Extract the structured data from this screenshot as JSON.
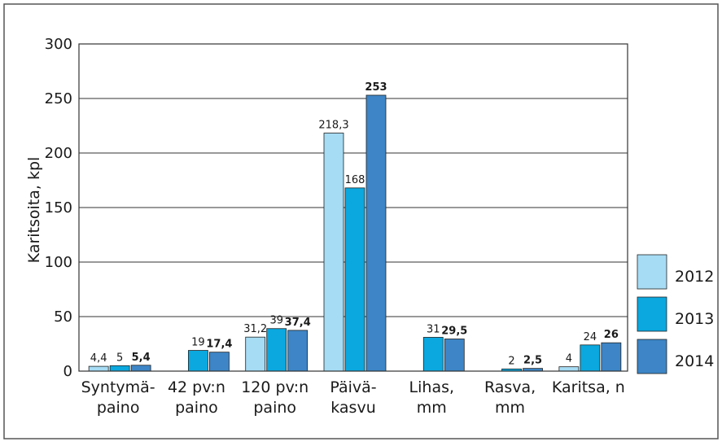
{
  "chart_data": {
    "type": "bar",
    "title": "",
    "xlabel": "",
    "ylabel": "Karitsoita, kpl",
    "ylim": [
      0,
      300
    ],
    "yticks": [
      0,
      50,
      100,
      150,
      200,
      250,
      300
    ],
    "grid": true,
    "legend_position": "right",
    "categories": [
      [
        "Syntymä-",
        "paino"
      ],
      [
        "42 pv:n",
        "paino"
      ],
      [
        "120 pv:n",
        "paino"
      ],
      [
        "Päivä-",
        "kasvu"
      ],
      [
        "Lihas,",
        "mm"
      ],
      [
        "Rasva,",
        "mm"
      ],
      [
        "Karitsa, n"
      ]
    ],
    "series": [
      {
        "name": "2012",
        "color": "#a6dcf4",
        "values": [
          4.4,
          null,
          31.2,
          218.3,
          null,
          null,
          4
        ],
        "labels": [
          "4,4",
          "",
          "31,2",
          "218,3",
          "",
          "",
          "4"
        ],
        "bold": false
      },
      {
        "name": "2013",
        "color": "#0aa8df",
        "values": [
          5,
          19,
          39,
          168,
          31,
          2,
          24
        ],
        "labels": [
          "5",
          "19",
          "39",
          "168",
          "31",
          "2",
          "24"
        ],
        "bold": false
      },
      {
        "name": "2014",
        "color": "#3d85c6",
        "values": [
          5.4,
          17.4,
          37.4,
          253,
          29.5,
          2.5,
          26
        ],
        "labels": [
          "5,4",
          "17,4",
          "37,4",
          "253",
          "29,5",
          "2,5",
          "26"
        ],
        "bold": true
      }
    ]
  }
}
